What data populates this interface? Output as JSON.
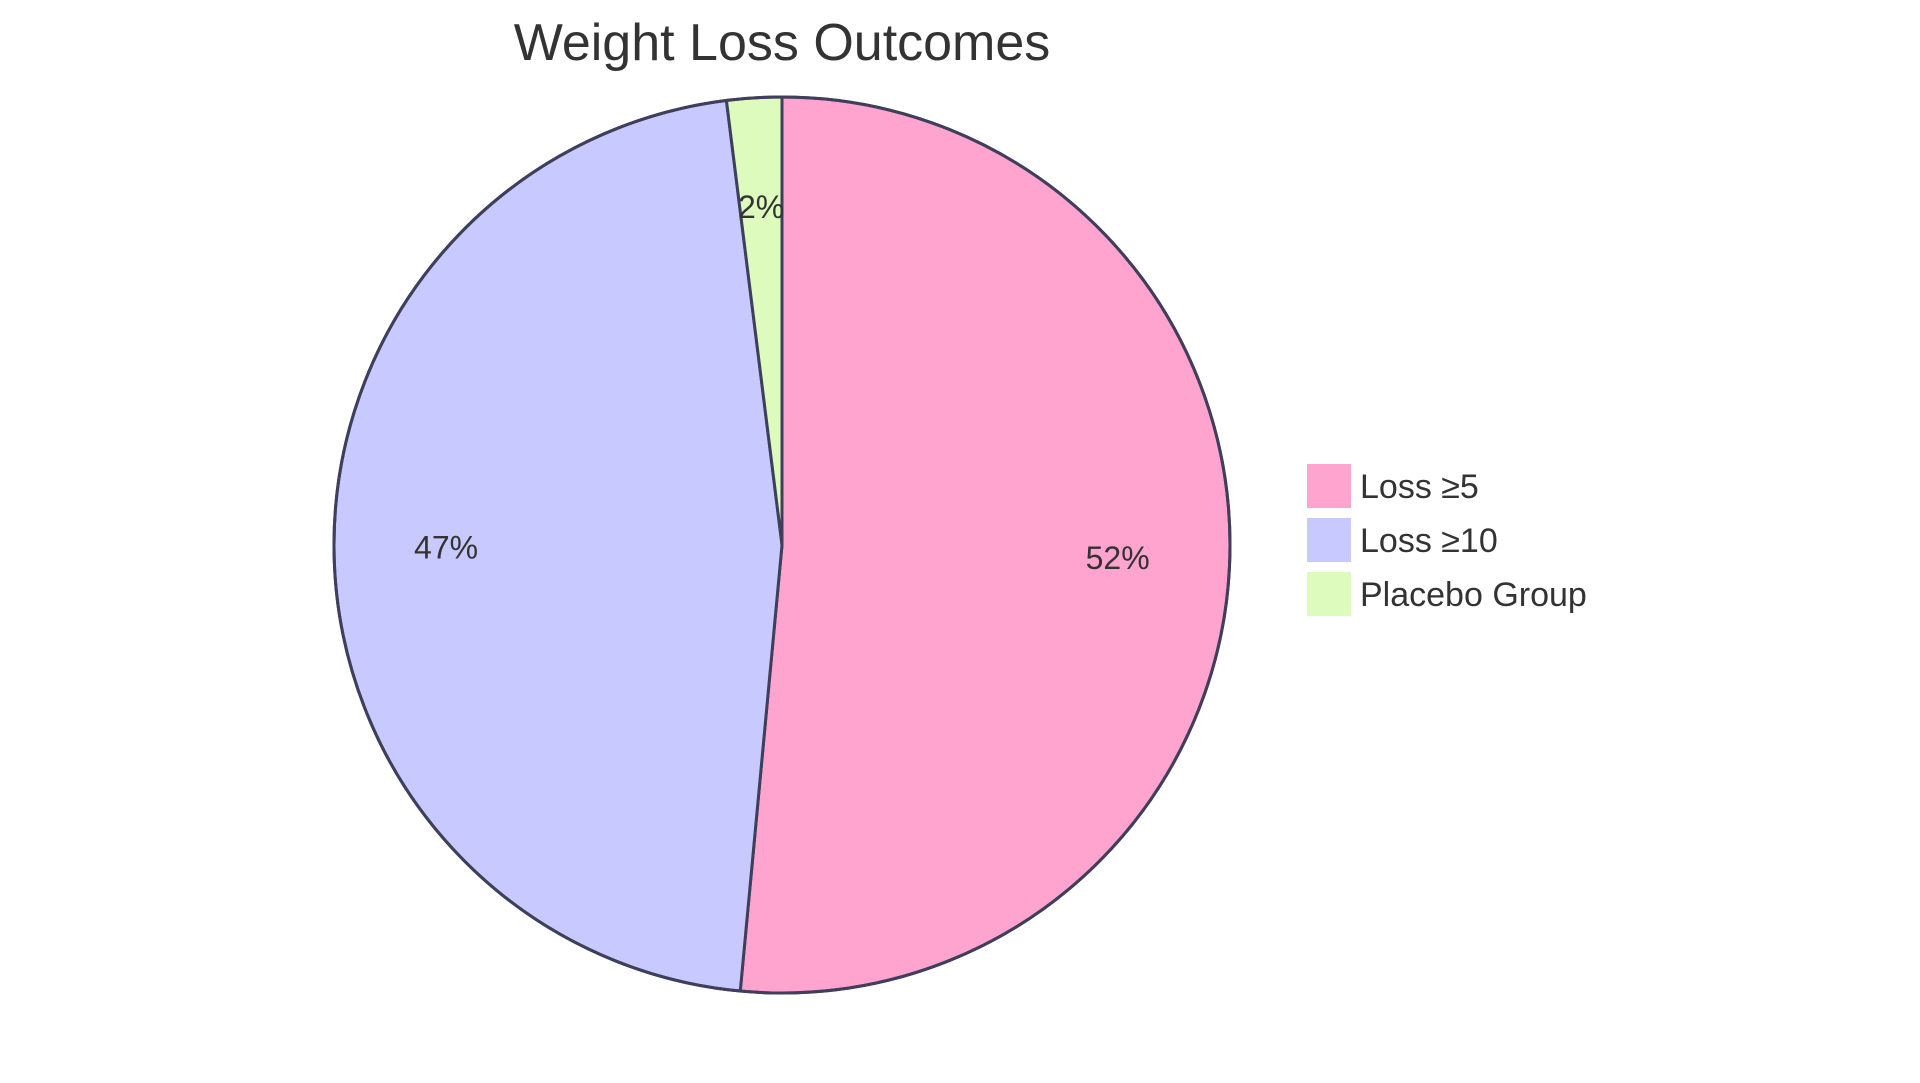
{
  "chart_data": {
    "type": "pie",
    "title": "Weight Loss Outcomes",
    "slices": [
      {
        "label": "Loss ≥5",
        "value": 52,
        "display": "52%",
        "color": "#ffa3cf"
      },
      {
        "label": "Loss ≥10",
        "value": 47,
        "display": "47%",
        "color": "#c8caff"
      },
      {
        "label": "Placebo Group",
        "value": 2,
        "display": "2%",
        "color": "#dcfbbd"
      }
    ],
    "start_angle_deg": 0,
    "direction": "clockwise",
    "legend_position": "right"
  }
}
